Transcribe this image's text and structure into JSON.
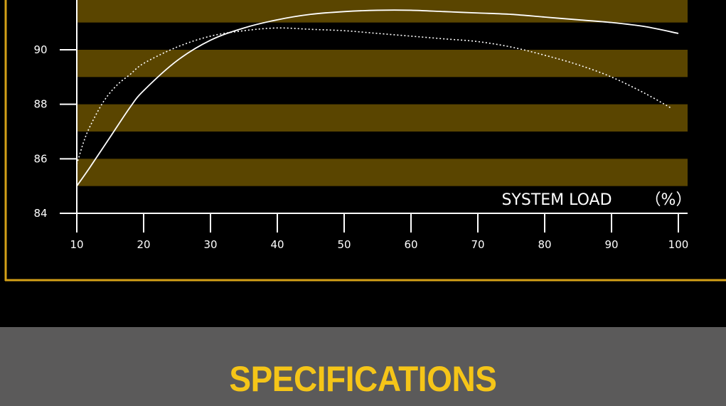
{
  "chart_data": {
    "type": "line",
    "title": "",
    "xlabel": "SYSTEM LOAD",
    "xlabel_unit": "（%）",
    "ylabel": "",
    "xlim": [
      10,
      100
    ],
    "ylim": [
      84,
      92
    ],
    "x_ticks": [
      10,
      20,
      30,
      40,
      50,
      60,
      70,
      80,
      90,
      100
    ],
    "y_ticks": [
      84,
      86,
      88,
      90
    ],
    "grid": "horizontal bands",
    "legend": "none",
    "series": [
      {
        "style": "solid",
        "color": "#ffffff",
        "x": [
          10,
          12,
          15,
          18,
          20,
          25,
          30,
          35,
          40,
          45,
          50,
          55,
          60,
          65,
          70,
          75,
          80,
          85,
          90,
          95,
          100
        ],
        "y": [
          85.0,
          85.7,
          86.8,
          87.9,
          88.5,
          89.6,
          90.35,
          90.8,
          91.1,
          91.3,
          91.4,
          91.45,
          91.45,
          91.4,
          91.35,
          91.3,
          91.2,
          91.1,
          91.0,
          90.85,
          90.6
        ]
      },
      {
        "style": "dotted",
        "color": "#ffffff",
        "x": [
          10,
          11,
          12,
          14,
          16,
          18,
          20,
          25,
          30,
          35,
          40,
          45,
          50,
          55,
          60,
          65,
          70,
          75,
          80,
          85,
          90,
          95,
          99
        ],
        "y": [
          85.8,
          86.6,
          87.2,
          88.1,
          88.7,
          89.1,
          89.5,
          90.1,
          90.5,
          90.7,
          90.8,
          90.75,
          90.7,
          90.6,
          90.5,
          90.4,
          90.3,
          90.1,
          89.8,
          89.45,
          89.0,
          88.4,
          87.85
        ]
      }
    ],
    "band_color": "#5a4500",
    "frame_color": "#d4a017"
  },
  "banner": {
    "title": "SPECIFICATIONS",
    "background": "#5b5a5a",
    "title_color": "#f5c518"
  }
}
